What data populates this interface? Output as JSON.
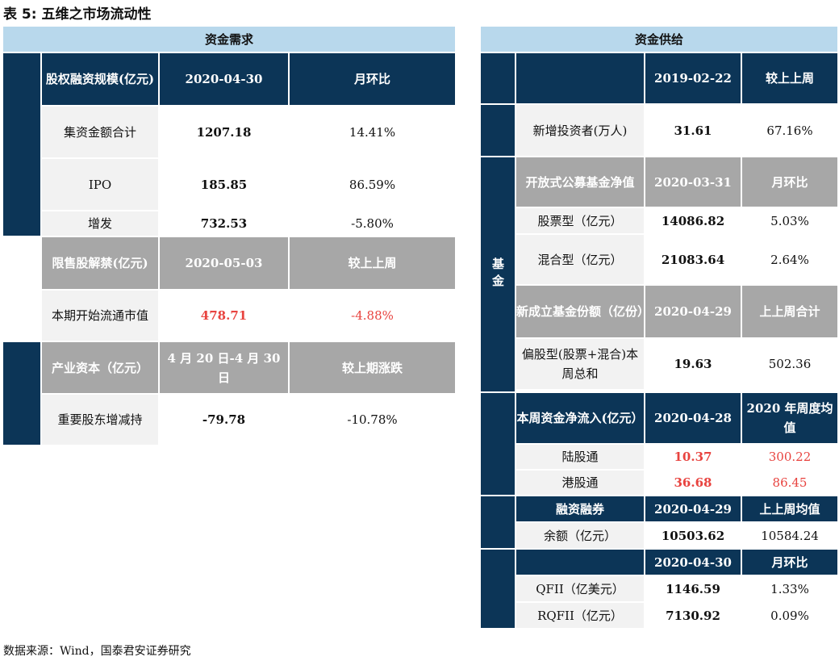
{
  "title": "表 5:  五维之市场流动性",
  "source": "数据来源：Wind，国泰君安证券研究",
  "left": {
    "header": "资金需求",
    "g1": {
      "label": "股权融资规模(亿元)",
      "date": "2020-04-30",
      "cmp": "月环比",
      "rows": [
        {
          "label": "集资金额合计",
          "value": "1207.18",
          "change": "14.41%"
        },
        {
          "label": "IPO",
          "value": "185.85",
          "change": "86.59%"
        },
        {
          "label": "增发",
          "value": "732.53",
          "change": "-5.80%"
        }
      ]
    },
    "g2": {
      "label": "限售股解禁(亿元)",
      "date": "2020-05-03",
      "cmp": "较上上周",
      "rows": [
        {
          "label": "本期开始流通市值",
          "value": "478.71",
          "change": "-4.88%"
        }
      ]
    },
    "g3": {
      "label": "产业资本（亿元）",
      "date": "4 月 20 日-4 月 30 日",
      "cmp": "较上期涨跌",
      "rows": [
        {
          "label": "重要股东增减持",
          "value": "-79.78",
          "change": "-10.78%"
        }
      ]
    }
  },
  "right": {
    "header": "资金供给",
    "top": {
      "date": "2019-02-22",
      "cmp": "较上上周"
    },
    "investor": {
      "label": "新增投资者(万人)",
      "value": "31.61",
      "change": "67.16%"
    },
    "fund_side": "基金",
    "open_fund": {
      "label": "开放式公募基金净值",
      "date": "2020-03-31",
      "cmp": "月环比",
      "rows": [
        {
          "label": "股票型（亿元）",
          "value": "14086.82",
          "change": "5.03%"
        },
        {
          "label": "混合型（亿元）",
          "value": "21083.64",
          "change": "2.64%"
        }
      ]
    },
    "new_fund": {
      "label": "新成立基金份额（亿份）",
      "date": "2020-04-29",
      "cmp": "上上周合计",
      "rows": [
        {
          "label": "偏股型(股票+混合)本周总和",
          "value": "19.63",
          "change": "502.36"
        }
      ]
    },
    "flow": {
      "label": "本周资金净流入(亿元）",
      "date": "2020-04-28",
      "cmp": "2020 年周度均值",
      "rows": [
        {
          "label": "陆股通",
          "value": "10.37",
          "change": "300.22"
        },
        {
          "label": "港股通",
          "value": "36.68",
          "change": "86.45"
        }
      ]
    },
    "margin": {
      "label": "融资融券",
      "date": "2020-04-29",
      "cmp": "上上周均值",
      "rows": [
        {
          "label": "余额（亿元）",
          "value": "10503.62",
          "change": "10584.24"
        }
      ]
    },
    "qfii": {
      "date": "2020-04-30",
      "cmp": "月环比",
      "rows": [
        {
          "label": "QFII（亿美元）",
          "value": "1146.59",
          "change": "1.33%"
        },
        {
          "label": "RQFII（亿元）",
          "value": "7130.92",
          "change": "0.09%"
        }
      ]
    }
  }
}
